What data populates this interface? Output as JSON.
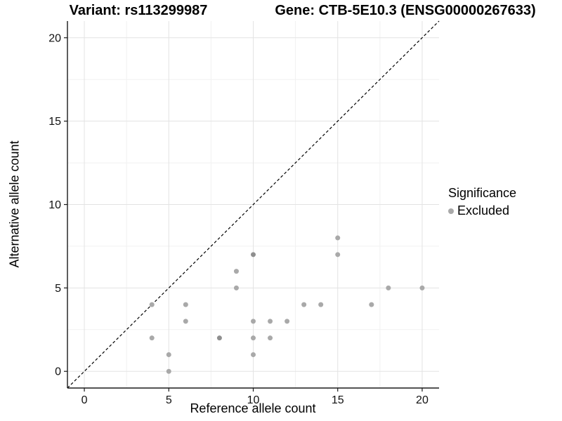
{
  "header": {
    "title_left": "Variant: rs113299987",
    "title_right": "Gene: CTB-5E10.3 (ENSG00000267633)"
  },
  "chart_data": {
    "type": "scatter",
    "title_left": "Variant: rs113299987",
    "title_right": "Gene: CTB-5E10.3 (ENSG00000267633)",
    "xlabel": "Reference allele count",
    "ylabel": "Alternative allele count",
    "xlim": [
      -1,
      21
    ],
    "ylim": [
      -1,
      21
    ],
    "x_ticks": [
      0,
      5,
      10,
      15,
      20
    ],
    "y_ticks": [
      0,
      5,
      10,
      15,
      20
    ],
    "grid": "major+minor",
    "identity_line": {
      "style": "dashed",
      "from": [
        -1,
        -1
      ],
      "to": [
        21,
        21
      ]
    },
    "series": [
      {
        "name": "Excluded",
        "color": "#a9a9a9",
        "points": [
          [
            4,
            2
          ],
          [
            4,
            4
          ],
          [
            5,
            0
          ],
          [
            5,
            1
          ],
          [
            6,
            3
          ],
          [
            6,
            4
          ],
          [
            8,
            2
          ],
          [
            9,
            5
          ],
          [
            9,
            6
          ],
          [
            10,
            1
          ],
          [
            10,
            2
          ],
          [
            10,
            3
          ],
          [
            10,
            7
          ],
          [
            11,
            2
          ],
          [
            11,
            3
          ],
          [
            12,
            3
          ],
          [
            13,
            4
          ],
          [
            14,
            4
          ],
          [
            15,
            7
          ],
          [
            15,
            8
          ],
          [
            17,
            4
          ],
          [
            18,
            5
          ],
          [
            20,
            5
          ]
        ],
        "darker_points": [
          [
            8,
            2
          ],
          [
            10,
            7
          ]
        ]
      }
    ],
    "legend": {
      "title": "Significance",
      "position": "right",
      "entries": [
        {
          "label": "Excluded",
          "color": "#a9a9a9"
        }
      ]
    }
  },
  "colors": {
    "background": "#ffffff",
    "grid_major": "#e3e3e3",
    "grid_minor": "#f1f1f1",
    "axis": "#1a1a1a",
    "tick_text": "#111111",
    "point": "#a9a9a9",
    "point_dark": "#8f8f8f",
    "identity_line": "#000000"
  }
}
